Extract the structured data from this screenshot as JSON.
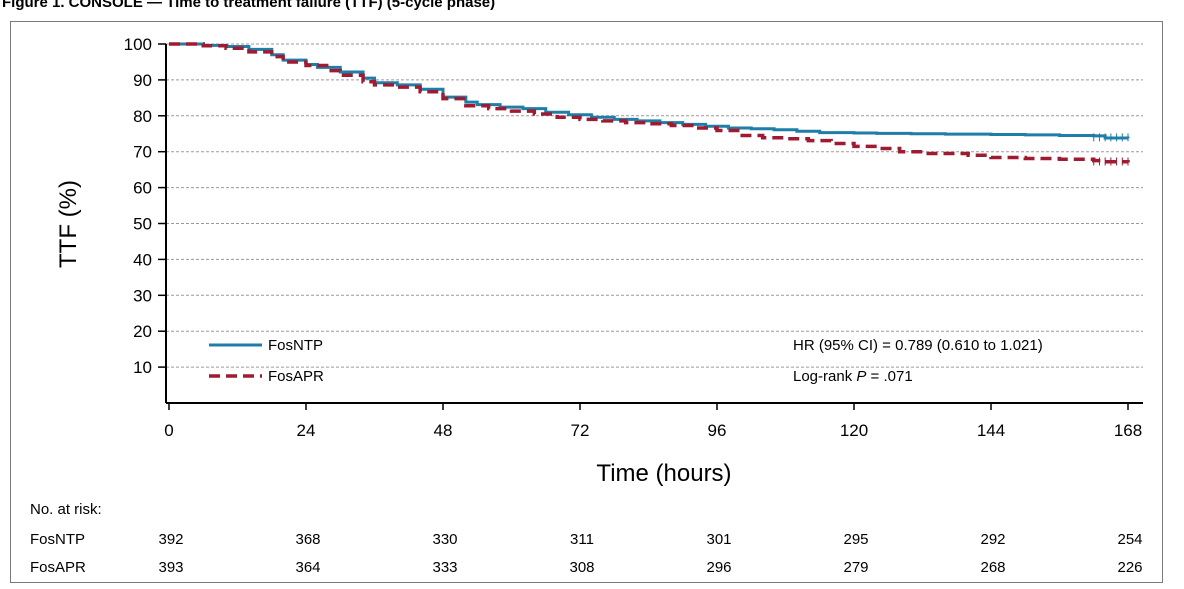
{
  "figure_title": "Figure 1. CONSOLE — Time to treatment failure (TTF) (5-cycle phase)",
  "chart_data": {
    "type": "line",
    "title": "",
    "xlabel": "Time (hours)",
    "ylabel": "TTF (%)",
    "xlim": [
      0,
      168
    ],
    "ylim": [
      0,
      100
    ],
    "xticks": [
      0,
      24,
      48,
      72,
      96,
      120,
      144,
      168
    ],
    "yticks": [
      10,
      20,
      30,
      40,
      50,
      60,
      70,
      80,
      90,
      100
    ],
    "grid": "horizontal dashed",
    "legend_position": "bottom-left",
    "series": [
      {
        "name": "FosNTP",
        "color": "#1f7ea8",
        "style": "solid",
        "x": [
          0,
          6,
          10,
          14,
          18,
          20,
          24,
          26,
          30,
          34,
          36,
          40,
          44,
          48,
          52,
          54,
          58,
          62,
          66,
          70,
          74,
          78,
          82,
          86,
          90,
          94,
          98,
          102,
          106,
          110,
          114,
          120,
          124,
          130,
          136,
          144,
          150,
          156,
          162,
          164,
          168
        ],
        "y": [
          100,
          99.6,
          99.3,
          98.5,
          97,
          95.5,
          94.3,
          93.5,
          92.2,
          90.5,
          89.2,
          88.6,
          87.4,
          85.2,
          83.8,
          83.1,
          82.4,
          82,
          81,
          80.3,
          79.6,
          79,
          78.6,
          78.1,
          77.6,
          77.1,
          76.6,
          76.4,
          76.1,
          75.7,
          75.3,
          75.2,
          75.1,
          75,
          74.9,
          74.8,
          74.7,
          74.5,
          74.4,
          73.8,
          73.7
        ]
      },
      {
        "name": "FosAPR",
        "color": "#9e1b32",
        "style": "dashed",
        "x": [
          0,
          6,
          10,
          14,
          18,
          20,
          24,
          28,
          30,
          34,
          36,
          40,
          44,
          48,
          52,
          56,
          60,
          64,
          68,
          72,
          76,
          80,
          84,
          88,
          92,
          96,
          100,
          104,
          108,
          112,
          116,
          120,
          124,
          128,
          132,
          140,
          144,
          150,
          156,
          162,
          164,
          168
        ],
        "y": [
          100,
          99.5,
          98.8,
          97.8,
          96.5,
          95,
          94,
          92.6,
          91.3,
          89.5,
          88.6,
          88,
          86.7,
          84.8,
          82.8,
          82,
          81.3,
          80.5,
          79.6,
          79,
          78.6,
          78.1,
          77.8,
          77.3,
          76.6,
          75.9,
          74.5,
          73.9,
          73.6,
          73.1,
          72.3,
          71.5,
          70.9,
          70,
          69.5,
          69,
          68.4,
          68.1,
          67.9,
          67.5,
          67.2,
          67
        ]
      }
    ],
    "annotations": {
      "hr": "HR (95% CI) = 0.789 (0.610 to 1.021)",
      "logrank_prefix": "Log-rank ",
      "logrank_p": "P",
      "logrank_value": " = .071"
    },
    "risk_table": {
      "title": "No. at risk:",
      "times": [
        0,
        24,
        48,
        72,
        96,
        120,
        144,
        168
      ],
      "rows": [
        {
          "name": "FosNTP",
          "values": [
            392,
            368,
            330,
            311,
            301,
            295,
            292,
            254
          ]
        },
        {
          "name": "FosAPR",
          "values": [
            393,
            364,
            333,
            308,
            296,
            279,
            268,
            226
          ]
        }
      ]
    }
  }
}
